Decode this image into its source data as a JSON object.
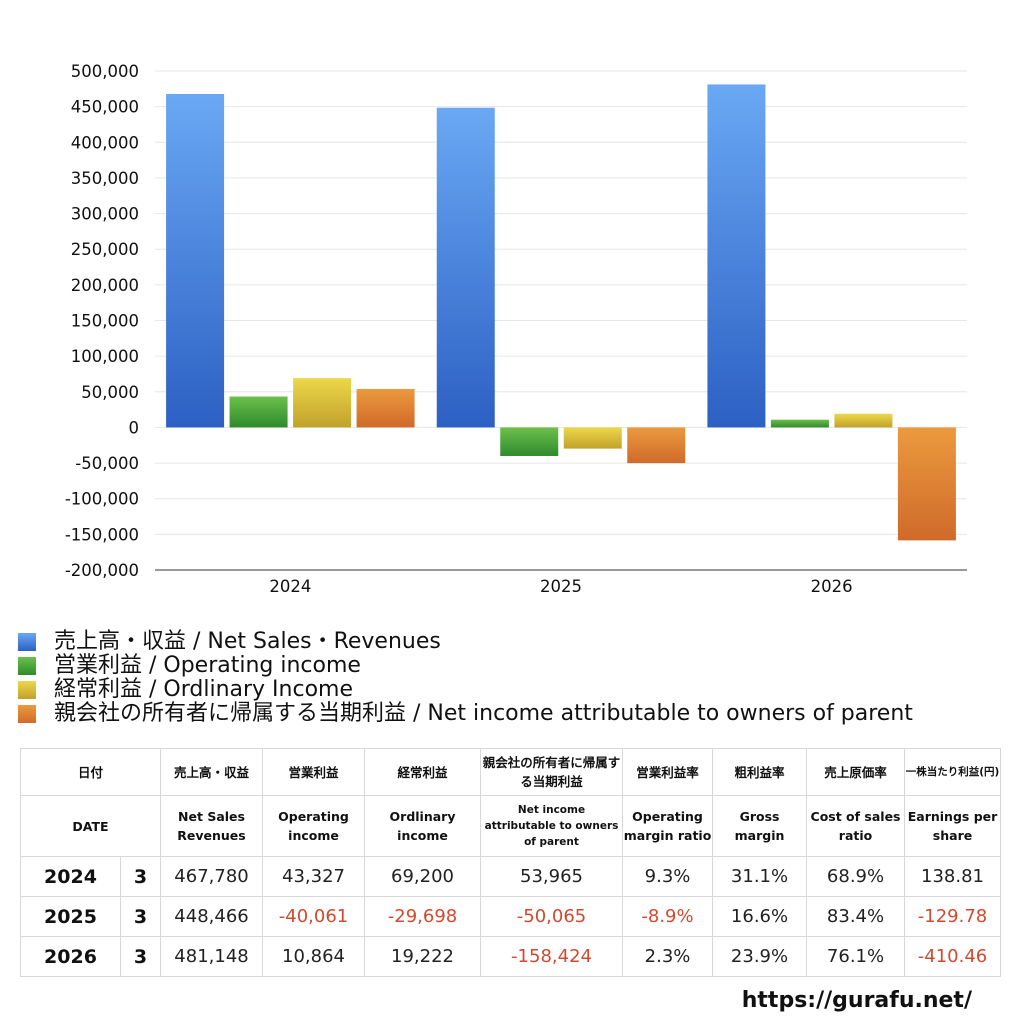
{
  "chart_data": {
    "type": "bar",
    "categories": [
      "2024",
      "2025",
      "2026"
    ],
    "series": [
      {
        "name": "売上高・収益 / Net Sales・Revenues",
        "values": [
          467780,
          448466,
          481148
        ],
        "color_top": "#6aa8f4",
        "color_bottom": "#2c60c3"
      },
      {
        "name": "営業利益 / Operating income",
        "values": [
          43327,
          -40061,
          10864
        ],
        "color_top": "#6cc04a",
        "color_bottom": "#2f8a2d"
      },
      {
        "name": "経常利益 / Ordlinary Income",
        "values": [
          69200,
          -29698,
          19222
        ],
        "color_top": "#ecd84a",
        "color_bottom": "#c1a12b"
      },
      {
        "name": "親会社の所有者に帰属する当期利益 / Net income attributable to owners of parent",
        "values": [
          53965,
          -50065,
          -158424
        ],
        "color_top": "#eb9a3e",
        "color_bottom": "#d06a2a"
      }
    ],
    "yticks": [
      "500,000",
      "450,000",
      "400,000",
      "350,000",
      "300,000",
      "250,000",
      "200,000",
      "150,000",
      "100,000",
      "50,000",
      "0",
      "-50,000",
      "-100,000",
      "-150,000",
      "-200,000"
    ],
    "ylim": [
      -200000,
      500000
    ],
    "ystep": 50000,
    "grid": true,
    "legend": "bottom",
    "title": "",
    "xlabel": "",
    "ylabel": ""
  },
  "table": {
    "header_jp": [
      "日付",
      "売上高・収益",
      "営業利益",
      "経常利益",
      "親会社の所有者に帰属する当期利益",
      "営業利益率",
      "粗利益率",
      "売上原価率",
      "一株当たり利益(円)"
    ],
    "header_en": [
      "DATE",
      "Net Sales Revenues",
      "Operating income",
      "Ordlinary income",
      "Net income attributable to owners of parent",
      "Operating margin ratio",
      "Gross margin",
      "Cost of sales ratio",
      "Earnings per share"
    ],
    "rows": [
      {
        "year": "2024",
        "month": "3",
        "sales": "467,780",
        "op": "43,327",
        "ord": "69,200",
        "net": "53,965",
        "opm": "9.3%",
        "gm": "31.1%",
        "cost": "68.9%",
        "eps": "138.81"
      },
      {
        "year": "2025",
        "month": "3",
        "sales": "448,466",
        "op": "-40,061",
        "ord": "-29,698",
        "net": "-50,065",
        "opm": "-8.9%",
        "gm": "16.6%",
        "cost": "83.4%",
        "eps": "-129.78"
      },
      {
        "year": "2026",
        "month": "3",
        "sales": "481,148",
        "op": "10,864",
        "ord": "19,222",
        "net": "-158,424",
        "opm": "2.3%",
        "gm": "23.9%",
        "cost": "76.1%",
        "eps": "-410.46"
      }
    ],
    "neg_color": "#d24a2e"
  },
  "footer": {
    "site": "https://gurafu.net/"
  }
}
